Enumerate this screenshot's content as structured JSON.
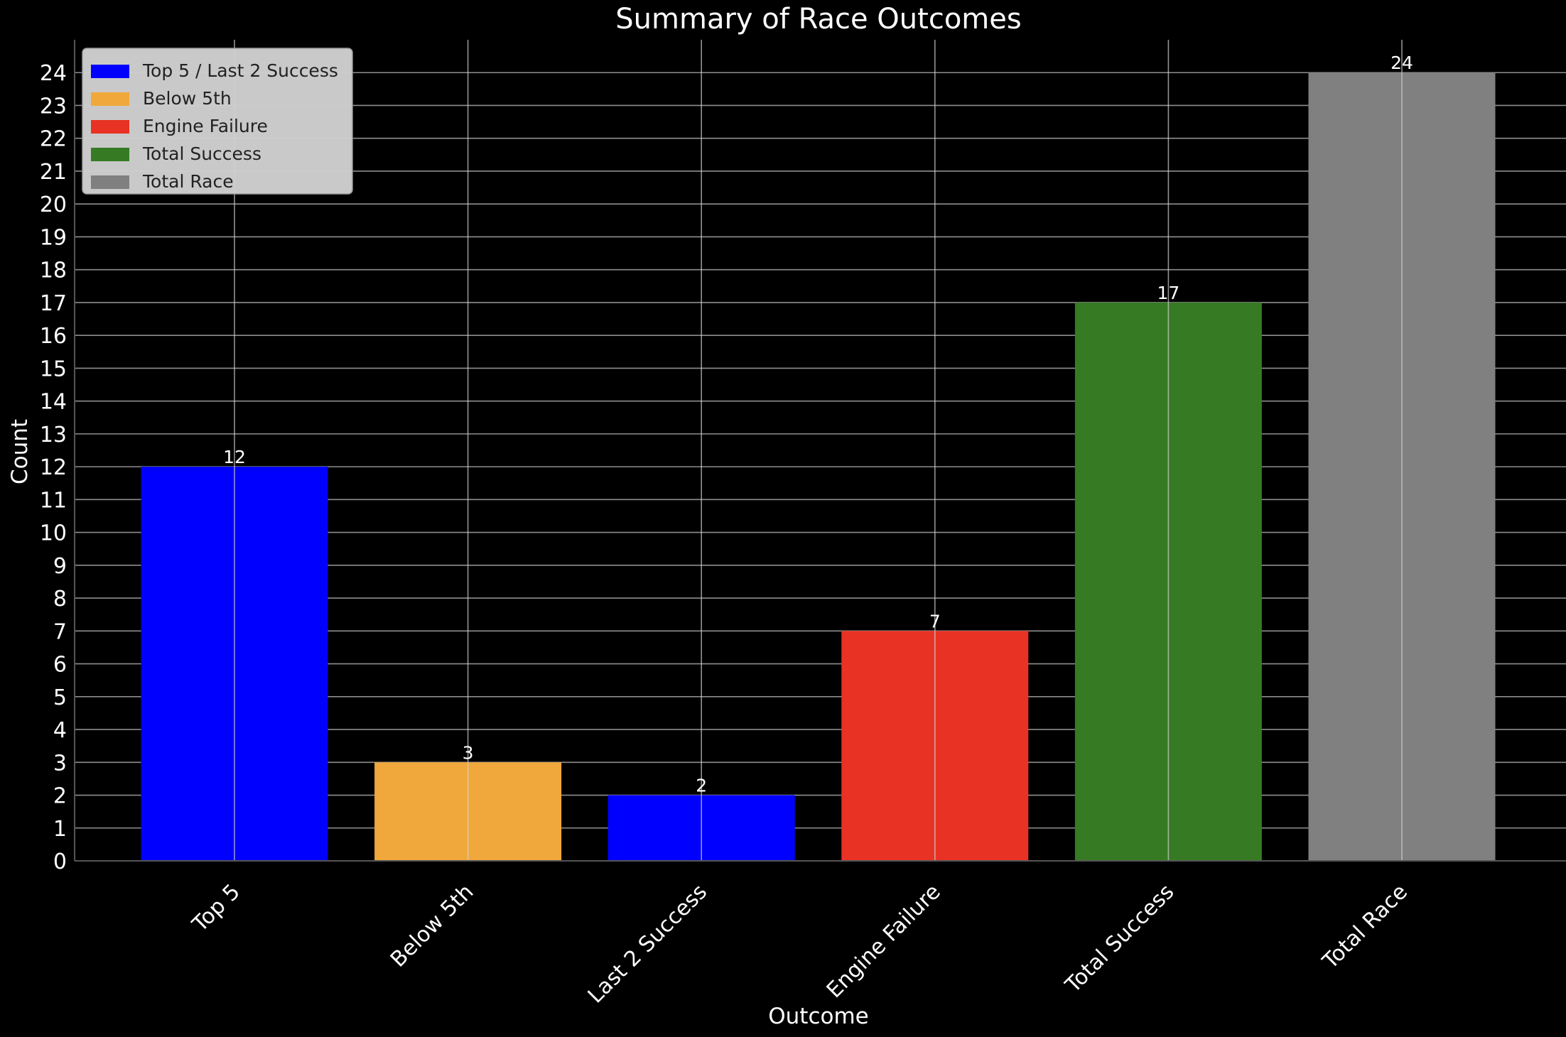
{
  "chart_data": {
    "type": "bar",
    "title": "Summary of Race Outcomes",
    "xlabel": "Outcome",
    "ylabel": "Count",
    "categories": [
      "Top 5",
      "Below 5th",
      "Last 2 Success",
      "Engine Failure",
      "Total Success",
      "Total Race"
    ],
    "values": [
      12,
      3,
      2,
      7,
      17,
      24
    ],
    "colors": [
      "#0000ff",
      "#f0a83c",
      "#e83224",
      "#367b23",
      "#808080"
    ],
    "bar_colors": [
      "#0000ff",
      "#f0a83c",
      "#0000ff",
      "#e83224",
      "#367b23",
      "#808080"
    ],
    "ylim": [
      0,
      25
    ],
    "yticks": [
      0,
      1,
      2,
      3,
      4,
      5,
      6,
      7,
      8,
      9,
      10,
      11,
      12,
      13,
      14,
      15,
      16,
      17,
      18,
      19,
      20,
      21,
      22,
      23,
      24
    ],
    "grid": true,
    "legend_position": "top-left",
    "legend": [
      {
        "label": "Top 5 / Last 2 Success",
        "color": "#0000ff"
      },
      {
        "label": "Below 5th",
        "color": "#f0a83c"
      },
      {
        "label": "Engine Failure",
        "color": "#e83224"
      },
      {
        "label": "Total Success",
        "color": "#367b23"
      },
      {
        "label": "Total Race",
        "color": "#808080"
      }
    ],
    "background": "#000000"
  }
}
